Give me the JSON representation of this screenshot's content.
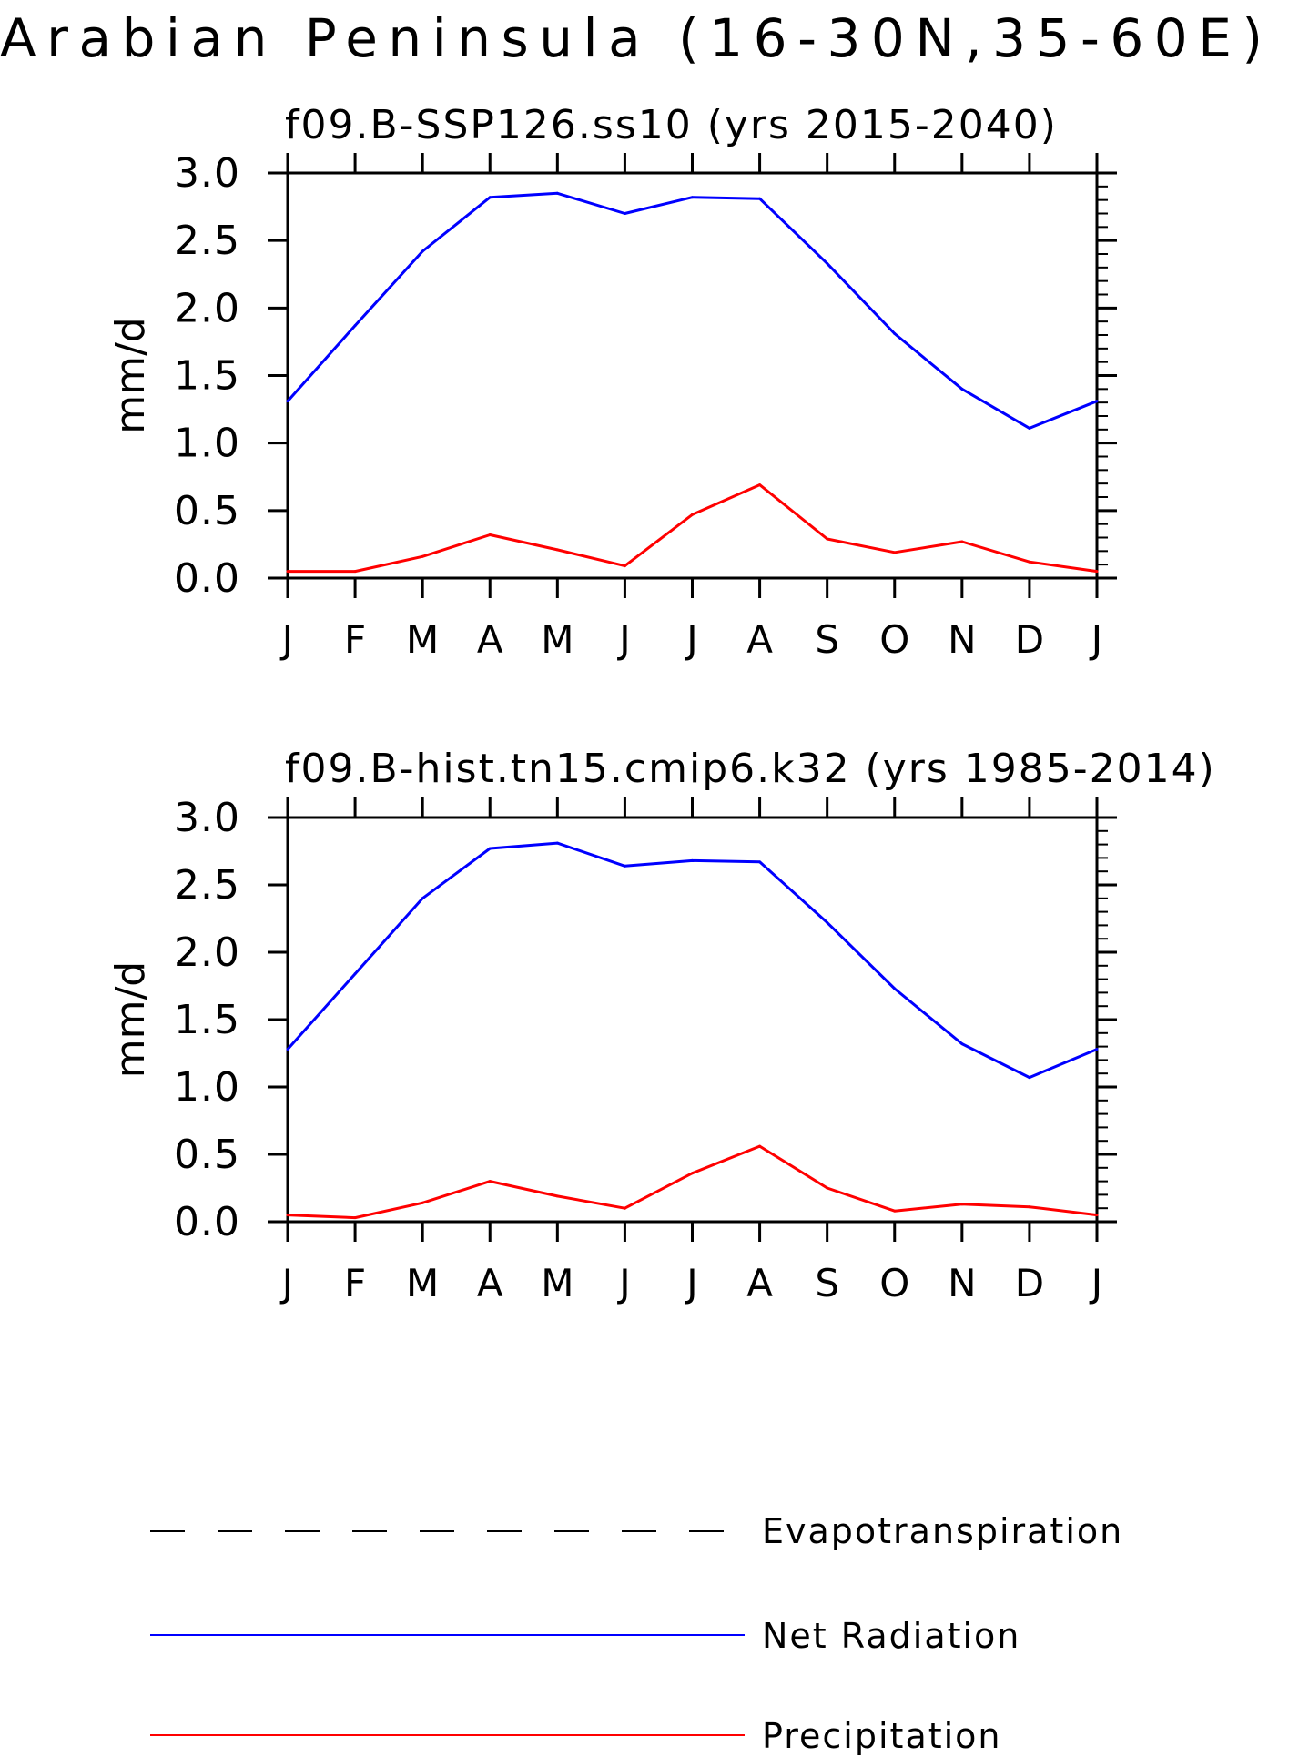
{
  "figure_title": "Arabian Peninsula (16-30N,35-60E)",
  "legend": {
    "items": [
      {
        "label": "Evapotranspiration",
        "color": "#000000",
        "style": "dashed"
      },
      {
        "label": "Net Radiation",
        "color": "#0000ff",
        "style": "solid"
      },
      {
        "label": "Precipitation",
        "color": "#ff0000",
        "style": "solid"
      }
    ]
  },
  "chart_data": [
    {
      "type": "line",
      "title": "f09.B-SSP126.ss10 (yrs 2015-2040)",
      "xlabel": "",
      "ylabel": "mm/d",
      "ylim": [
        0,
        3
      ],
      "yticks": [
        "0.0",
        "0.5",
        "1.0",
        "1.5",
        "2.0",
        "2.5",
        "3.0"
      ],
      "categories": [
        "J",
        "F",
        "M",
        "A",
        "M",
        "J",
        "J",
        "A",
        "S",
        "O",
        "N",
        "D",
        "J"
      ],
      "series": [
        {
          "name": "Net Radiation",
          "color": "#0000ff",
          "values": [
            1.31,
            1.87,
            2.42,
            2.82,
            2.85,
            2.7,
            2.82,
            2.81,
            2.33,
            1.81,
            1.4,
            1.11,
            1.31
          ]
        },
        {
          "name": "Precipitation",
          "color": "#ff0000",
          "values": [
            0.05,
            0.05,
            0.16,
            0.32,
            0.21,
            0.09,
            0.47,
            0.69,
            0.29,
            0.19,
            0.27,
            0.12,
            0.05
          ]
        }
      ]
    },
    {
      "type": "line",
      "title": "f09.B-hist.tn15.cmip6.k32 (yrs 1985-2014)",
      "xlabel": "",
      "ylabel": "mm/d",
      "ylim": [
        0,
        3
      ],
      "yticks": [
        "0.0",
        "0.5",
        "1.0",
        "1.5",
        "2.0",
        "2.5",
        "3.0"
      ],
      "categories": [
        "J",
        "F",
        "M",
        "A",
        "M",
        "J",
        "J",
        "A",
        "S",
        "O",
        "N",
        "D",
        "J"
      ],
      "series": [
        {
          "name": "Net Radiation",
          "color": "#0000ff",
          "values": [
            1.28,
            1.84,
            2.4,
            2.77,
            2.81,
            2.64,
            2.68,
            2.67,
            2.22,
            1.73,
            1.32,
            1.07,
            1.28
          ]
        },
        {
          "name": "Precipitation",
          "color": "#ff0000",
          "values": [
            0.05,
            0.03,
            0.14,
            0.3,
            0.19,
            0.1,
            0.36,
            0.56,
            0.25,
            0.08,
            0.13,
            0.11,
            0.05
          ]
        }
      ]
    }
  ]
}
